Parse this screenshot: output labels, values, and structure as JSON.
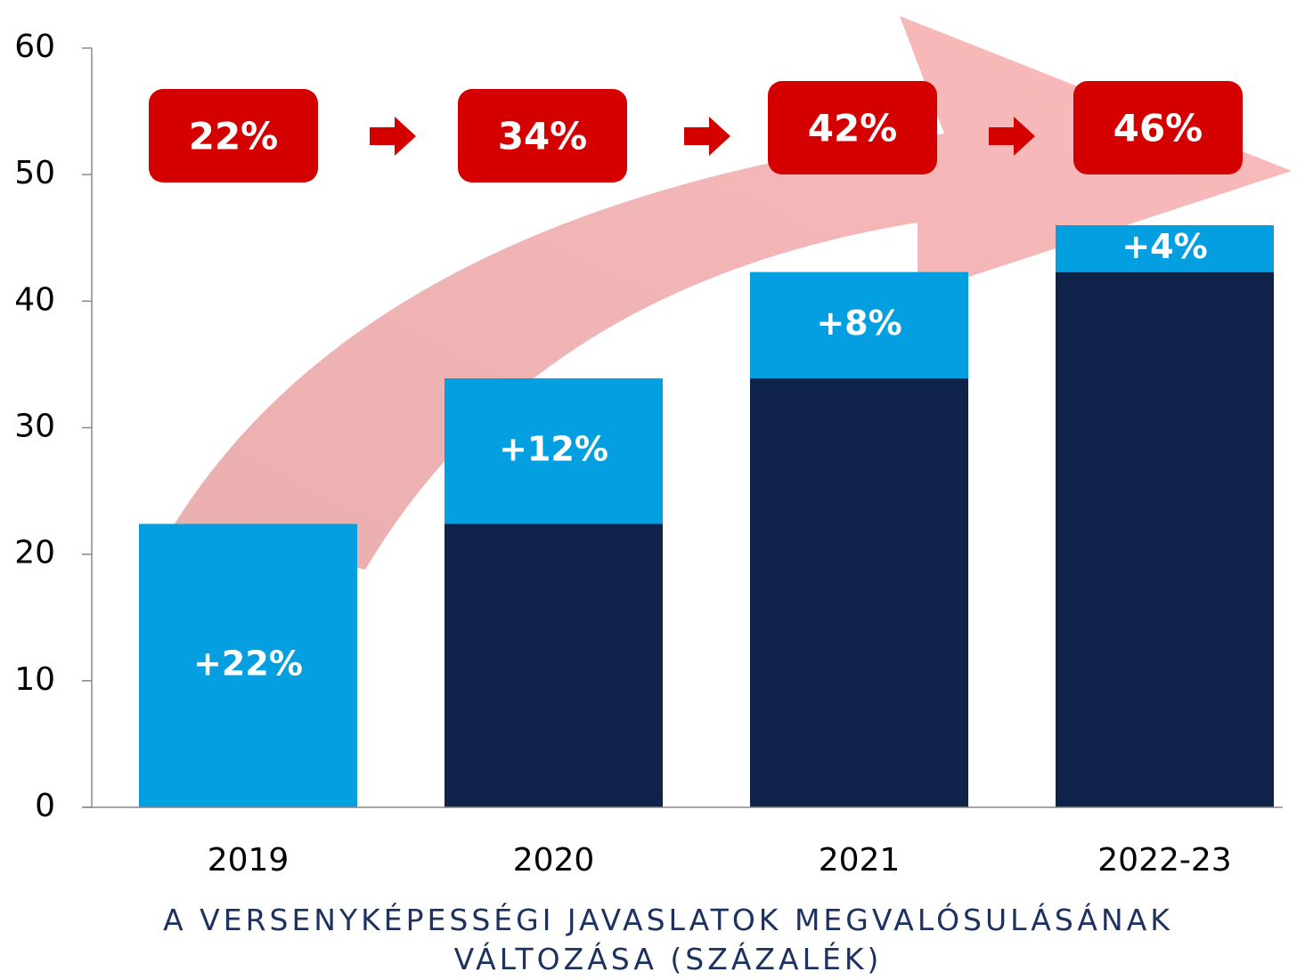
{
  "chart_data": {
    "type": "stacked_bar",
    "categories": [
      "2019",
      "2020",
      "2021",
      "2022-23"
    ],
    "series": [
      {
        "color": "#0f224a",
        "values": [
          0,
          22.4,
          33.9,
          42.3
        ]
      },
      {
        "color": "#039fe0",
        "values": [
          22.4,
          11.5,
          8.4,
          3.7
        ],
        "value_labels": [
          "+22%",
          "+12%",
          "+8%",
          "+4%"
        ]
      }
    ],
    "annotations": [
      "22%",
      "34%",
      "42%",
      "46%"
    ],
    "x_label": "A VERSENYKÉPESSÉGI JAVASLATOK MEGVALÓSULÁSÁNAK VÁLTOZÁSA (SZÁZALÉK)",
    "ylim": [
      0,
      60
    ],
    "yticks": [
      0,
      10,
      20,
      30,
      40,
      50,
      60
    ],
    "grid": false
  }
}
